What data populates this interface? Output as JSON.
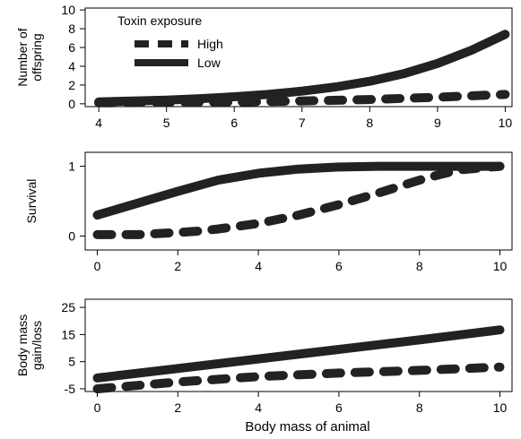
{
  "figure": {
    "xlabel": "Body mass of animal",
    "legend": {
      "title": "Toxin exposure",
      "position": "top-left",
      "entries": [
        {
          "name": "High",
          "dash": true
        },
        {
          "name": "Low",
          "dash": false
        }
      ]
    }
  },
  "chart_data": [
    {
      "type": "line",
      "ylabel": [
        "Number of",
        "offspring"
      ],
      "xlim": [
        3.8,
        10.1
      ],
      "ylim": [
        -0.3,
        10.2
      ],
      "xticks": [
        "4",
        "5",
        "6",
        "7",
        "8",
        "9",
        "10"
      ],
      "yticks": [
        "0",
        "2",
        "4",
        "6",
        "8",
        "10"
      ],
      "legend": true,
      "series": [
        {
          "name": "High",
          "dash": true,
          "x": [
            4,
            5,
            6,
            7,
            8,
            9,
            10
          ],
          "y": [
            0.1,
            0.15,
            0.2,
            0.3,
            0.45,
            0.7,
            1.0
          ]
        },
        {
          "name": "Low",
          "dash": false,
          "x": [
            4,
            4.5,
            5,
            5.5,
            6,
            6.5,
            7,
            7.5,
            8,
            8.5,
            9,
            9.5,
            10
          ],
          "y": [
            0.2,
            0.3,
            0.4,
            0.55,
            0.75,
            1.0,
            1.35,
            1.8,
            2.4,
            3.2,
            4.3,
            5.7,
            7.4
          ]
        }
      ]
    },
    {
      "type": "line",
      "ylabel": [
        "Survival"
      ],
      "xlim": [
        -0.3,
        10.3
      ],
      "ylim": [
        -0.2,
        1.2
      ],
      "xticks": [
        "0",
        "2",
        "4",
        "6",
        "8",
        "10"
      ],
      "yticks": [
        "0",
        "1"
      ],
      "legend": false,
      "series": [
        {
          "name": "High",
          "dash": true,
          "x": [
            0,
            1,
            2,
            2.5,
            3,
            4,
            5,
            6,
            7,
            8,
            8.5,
            9,
            10
          ],
          "y": [
            0.02,
            0.02,
            0.05,
            0.07,
            0.1,
            0.18,
            0.3,
            0.45,
            0.62,
            0.8,
            0.88,
            0.95,
            1.0
          ]
        },
        {
          "name": "Low",
          "dash": false,
          "x": [
            0,
            1,
            2,
            3,
            4,
            5,
            6,
            7,
            8,
            9,
            10
          ],
          "y": [
            0.3,
            0.47,
            0.64,
            0.8,
            0.9,
            0.96,
            0.99,
            1.0,
            1.0,
            1.0,
            1.0
          ]
        }
      ]
    },
    {
      "type": "line",
      "ylabel": [
        "Body mass",
        "gain/loss"
      ],
      "xlim": [
        -0.3,
        10.3
      ],
      "ylim": [
        -6,
        28
      ],
      "xticks": [
        "0",
        "2",
        "4",
        "6",
        "8",
        "10"
      ],
      "yticks": [
        "-5",
        "5",
        "15",
        "25"
      ],
      "legend": false,
      "series": [
        {
          "name": "High",
          "dash": true,
          "x": [
            0,
            2,
            4,
            6,
            8,
            10
          ],
          "y": [
            -5,
            -2.5,
            -0.5,
            0.8,
            1.8,
            3.0
          ]
        },
        {
          "name": "Low",
          "dash": false,
          "x": [
            0,
            2,
            4,
            6,
            8,
            10
          ],
          "y": [
            -1,
            2.5,
            6,
            9.5,
            13,
            16.7
          ]
        }
      ]
    }
  ]
}
